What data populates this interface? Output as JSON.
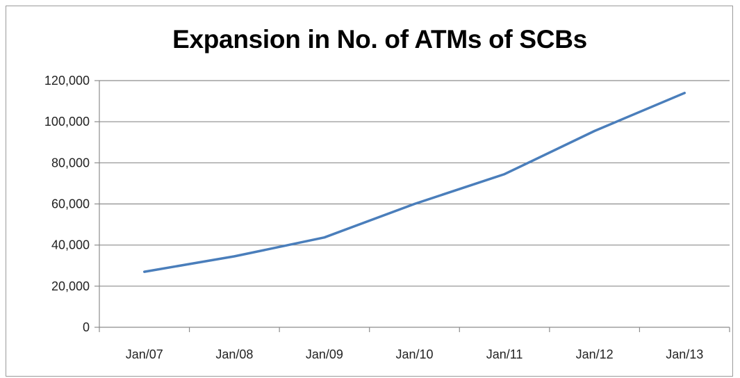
{
  "chart_data": {
    "type": "line",
    "title": "Expansion in No. of ATMs of SCBs",
    "xlabel": "",
    "ylabel": "",
    "categories": [
      "Jan/07",
      "Jan/08",
      "Jan/09",
      "Jan/10",
      "Jan/11",
      "Jan/12",
      "Jan/13"
    ],
    "series": [
      {
        "values": [
          27000,
          34500,
          43700,
          60000,
          74500,
          95500,
          114000
        ]
      }
    ],
    "ylim": [
      0,
      120000
    ],
    "yticks": [
      0,
      20000,
      40000,
      60000,
      80000,
      100000,
      120000
    ],
    "ytick_labels": [
      "0",
      "20,000",
      "40,000",
      "60,000",
      "80,000",
      "100,000",
      "120,000"
    ],
    "grid": true,
    "legend": "none",
    "line_color": "#4a7ebb",
    "grid_color": "#8c8c8c"
  }
}
